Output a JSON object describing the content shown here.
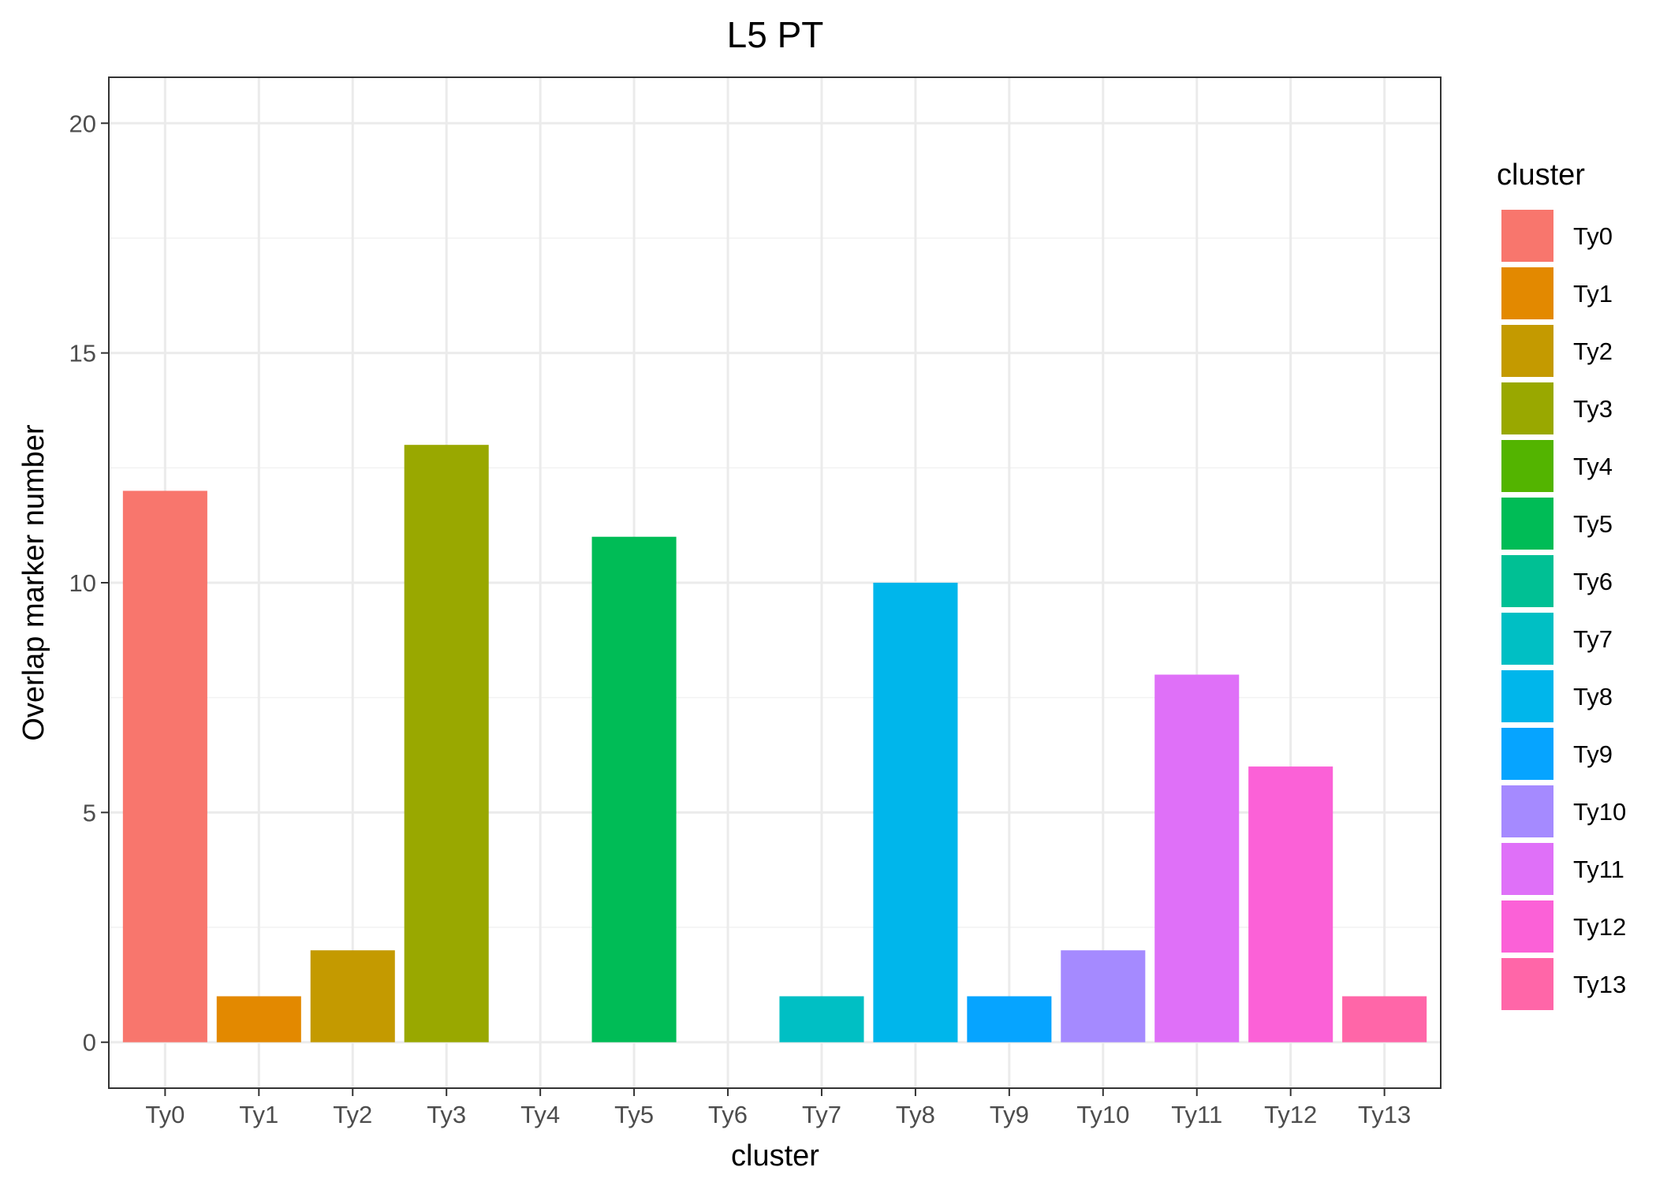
{
  "chart_data": {
    "type": "bar",
    "title": "L5 PT",
    "xlabel": "cluster",
    "ylabel": "Overlap marker number",
    "categories": [
      "Ty0",
      "Ty1",
      "Ty2",
      "Ty3",
      "Ty4",
      "Ty5",
      "Ty6",
      "Ty7",
      "Ty8",
      "Ty9",
      "Ty10",
      "Ty11",
      "Ty12",
      "Ty13"
    ],
    "values": [
      12,
      1,
      2,
      13,
      0,
      11,
      0,
      1,
      10,
      1,
      2,
      8,
      6,
      1
    ],
    "colors": [
      "#F8766D",
      "#E38900",
      "#C49A00",
      "#99A800",
      "#53B400",
      "#00BC56",
      "#00C094",
      "#00BFC4",
      "#00B6EB",
      "#06A4FF",
      "#A58AFF",
      "#DF70F8",
      "#FB61D7",
      "#FF66A8"
    ],
    "ylim": [
      -1,
      21
    ],
    "yticks": [
      0,
      5,
      10,
      15,
      20
    ],
    "grid": true,
    "legend": {
      "title": "cluster",
      "placement": "right"
    }
  }
}
